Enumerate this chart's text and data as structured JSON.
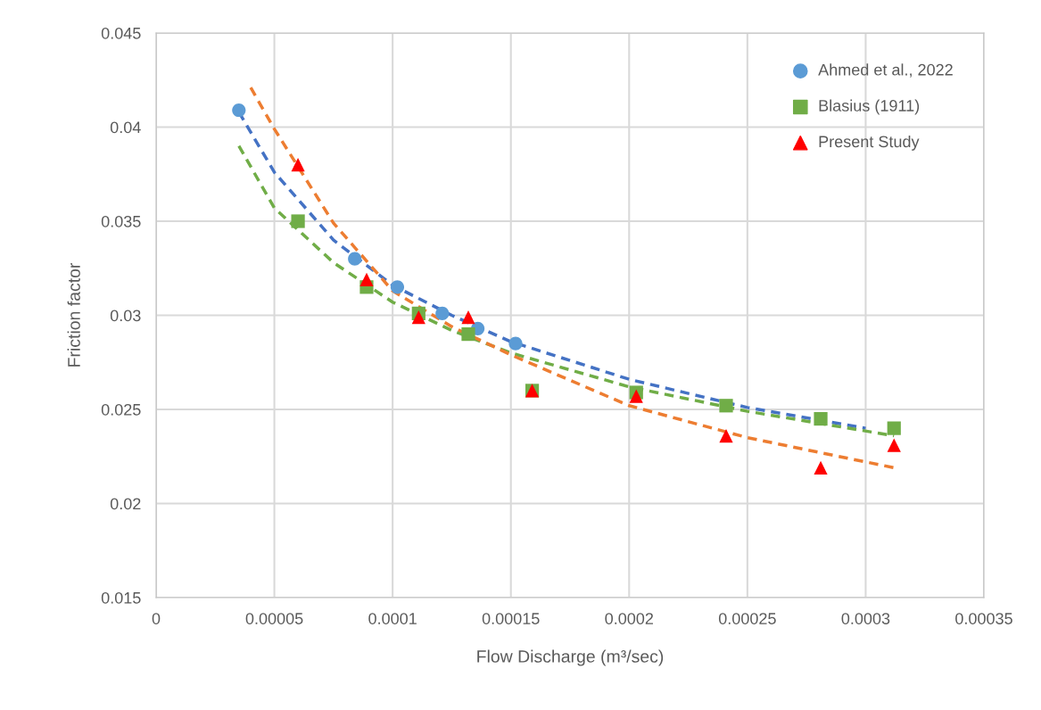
{
  "chart_data": {
    "type": "scatter",
    "xlabel": "Flow Discharge (m³/sec)",
    "ylabel": "Friction factor",
    "xlim": [
      0,
      0.00035
    ],
    "ylim": [
      0.015,
      0.045
    ],
    "xticks": [
      0,
      {
        "value": 5e-05,
        "label": "0.00005"
      },
      {
        "value": 0.0001,
        "label": "0.0001"
      },
      {
        "value": 0.00015,
        "label": "0.00015"
      },
      {
        "value": 0.0002,
        "label": "0.0002"
      },
      {
        "value": 0.00025,
        "label": "0.00025"
      },
      {
        "value": 0.0003,
        "label": "0.0003"
      },
      {
        "value": 0.00035,
        "label": "0.00035"
      }
    ],
    "yticks": [
      0.015,
      0.02,
      0.025,
      0.03,
      0.035,
      0.04,
      0.045
    ],
    "grid": true,
    "legend": "top right",
    "series": [
      {
        "name": "Ahmed et al., 2022",
        "marker": "circle",
        "color": "#5b9bd5",
        "x": [
          3.5e-05,
          8.4e-05,
          0.000102,
          0.000121,
          0.000136,
          0.000152
        ],
        "values": [
          0.0409,
          0.033,
          0.0315,
          0.0301,
          0.0293,
          0.0285
        ]
      },
      {
        "name": "Blasius (1911)",
        "marker": "square",
        "color": "#70ad47",
        "x": [
          6e-05,
          8.9e-05,
          0.000111,
          0.000132,
          0.000159,
          0.000203,
          0.000241,
          0.000281,
          0.000312
        ],
        "values": [
          0.035,
          0.0315,
          0.0301,
          0.029,
          0.026,
          0.0259,
          0.0252,
          0.0245,
          0.024
        ]
      },
      {
        "name": "Present Study",
        "marker": "triangle",
        "color": "#ff0000",
        "x": [
          6e-05,
          8.9e-05,
          0.000111,
          0.000132,
          0.000159,
          0.000203,
          0.000241,
          0.000281,
          0.000312
        ],
        "values": [
          0.038,
          0.0319,
          0.0299,
          0.0299,
          0.026,
          0.0257,
          0.0236,
          0.0219,
          0.0231
        ]
      },
      {
        "type": "line",
        "line_style": "dashed",
        "color": "#4472c4",
        "x": [
          3.5e-05,
          5e-05,
          7.5e-05,
          0.0001,
          0.000125,
          0.00015,
          0.0002,
          0.00025,
          0.0003
        ],
        "values": [
          0.0408,
          0.0376,
          0.034,
          0.0316,
          0.03,
          0.0286,
          0.0266,
          0.0251,
          0.024
        ]
      },
      {
        "type": "line",
        "line_style": "dashed",
        "color": "#70ad47",
        "x": [
          3.5e-05,
          5e-05,
          7.5e-05,
          0.0001,
          0.000125,
          0.00015,
          0.0002,
          0.00025,
          0.000312
        ],
        "values": [
          0.039,
          0.0357,
          0.0328,
          0.0307,
          0.0292,
          0.028,
          0.0262,
          0.0249,
          0.0236
        ]
      },
      {
        "type": "line",
        "line_style": "dashed",
        "color": "#ed7d31",
        "x": [
          4e-05,
          5e-05,
          7.5e-05,
          0.0001,
          0.000125,
          0.00015,
          0.0002,
          0.00025,
          0.000312
        ],
        "values": [
          0.0421,
          0.0399,
          0.0349,
          0.0313,
          0.0294,
          0.0279,
          0.0252,
          0.0235,
          0.0219
        ]
      }
    ]
  }
}
